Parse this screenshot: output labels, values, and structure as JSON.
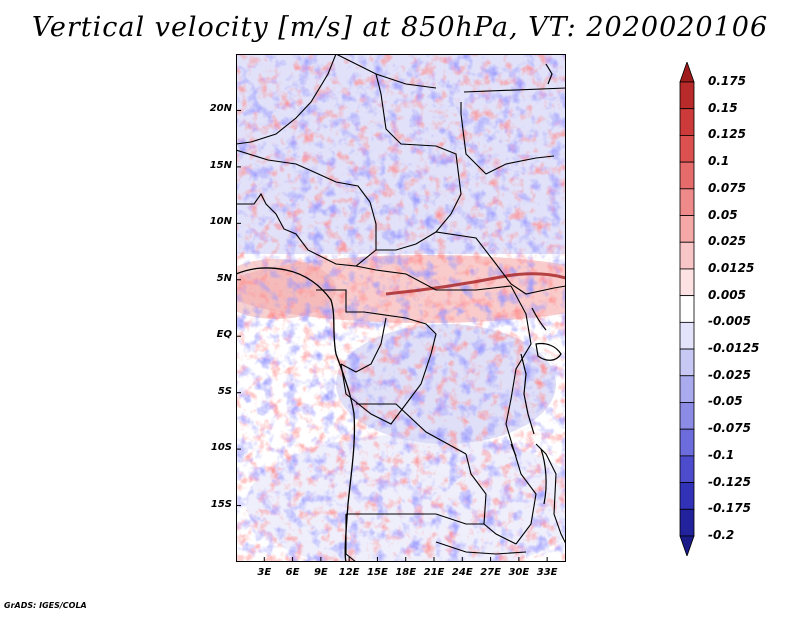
{
  "title": "Vertical velocity [m/s] at 850hPa, VT: 2020020106",
  "footer": "GrADS: IGES/COLA",
  "map": {
    "variable": "vertical velocity",
    "units": "m/s",
    "level": "850hPa",
    "valid_time": "2020020106",
    "extent": {
      "lon_min": 0,
      "lon_max": 35,
      "lat_min": -20,
      "lat_max": 25
    },
    "lat_ticks": [
      {
        "value": 20,
        "label": "20N"
      },
      {
        "value": 15,
        "label": "15N"
      },
      {
        "value": 10,
        "label": "10N"
      },
      {
        "value": 5,
        "label": "5N"
      },
      {
        "value": 0,
        "label": "EQ"
      },
      {
        "value": -5,
        "label": "5S"
      },
      {
        "value": -10,
        "label": "10S"
      },
      {
        "value": -15,
        "label": "15S"
      }
    ],
    "lon_ticks": [
      {
        "value": 3,
        "label": "3E"
      },
      {
        "value": 6,
        "label": "6E"
      },
      {
        "value": 9,
        "label": "9E"
      },
      {
        "value": 12,
        "label": "12E"
      },
      {
        "value": 15,
        "label": "15E"
      },
      {
        "value": 18,
        "label": "18E"
      },
      {
        "value": 21,
        "label": "21E"
      },
      {
        "value": 24,
        "label": "24E"
      },
      {
        "value": 27,
        "label": "27E"
      },
      {
        "value": 30,
        "label": "30E"
      },
      {
        "value": 33,
        "label": "33E"
      }
    ]
  },
  "colorbar": {
    "labels": [
      "0.175",
      "0.15",
      "0.125",
      "0.1",
      "0.075",
      "0.05",
      "0.025",
      "0.0125",
      "0.005",
      "-0.005",
      "-0.0125",
      "-0.025",
      "-0.05",
      "-0.075",
      "-0.1",
      "-0.125",
      "-0.175",
      "-0.2"
    ],
    "colors": [
      "#9e1c1c",
      "#b92a2a",
      "#cd3a3a",
      "#dd5050",
      "#e66c6c",
      "#ee8a8a",
      "#f4a8a8",
      "#f8c6c6",
      "#fce2e2",
      "#ffffff",
      "#e3e3fb",
      "#c8c8f4",
      "#aaaaee",
      "#8c8ce6",
      "#6c6cdc",
      "#4c4ccc",
      "#3232b8",
      "#22229c",
      "#1a1a88"
    ]
  }
}
